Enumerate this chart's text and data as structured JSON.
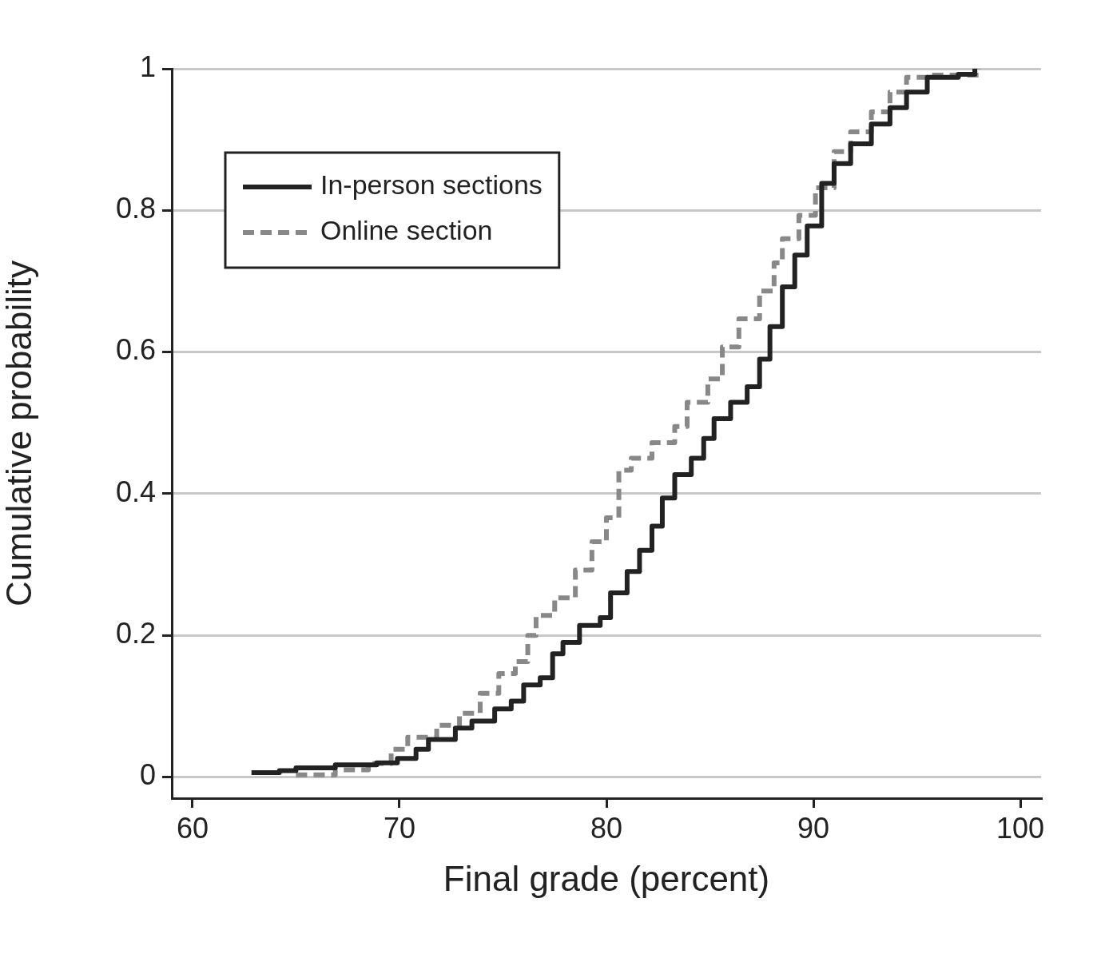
{
  "chart_data": {
    "type": "step",
    "xlabel": "Final grade (percent)",
    "ylabel": "Cumulative probability",
    "xlim": [
      59,
      101
    ],
    "ylim": [
      -0.03,
      1
    ],
    "xticks": [
      60,
      70,
      80,
      90,
      100
    ],
    "yticks": [
      0,
      0.2,
      0.4,
      0.6,
      0.8,
      1
    ],
    "grid": "y",
    "legend": "top left",
    "series": [
      {
        "name": "In-person sections",
        "color": "#222222",
        "line_style": "solid",
        "x": [
          62.85,
          64.2,
          65.0,
          66.9,
          68.9,
          69.9,
          70.8,
          71.4,
          72.7,
          73.5,
          74.6,
          75.4,
          76.0,
          76.8,
          77.4,
          77.9,
          78.7,
          79.7,
          80.2,
          81.0,
          81.6,
          82.2,
          82.7,
          83.3,
          84.1,
          84.7,
          85.2,
          86.0,
          86.8,
          87.4,
          87.9,
          88.5,
          89.1,
          89.7,
          90.4,
          91.0,
          91.8,
          92.8,
          93.7,
          94.5,
          95.5,
          97.0,
          97.8
        ],
        "values": [
          0.006,
          0.009,
          0.013,
          0.017,
          0.02,
          0.026,
          0.039,
          0.053,
          0.069,
          0.079,
          0.096,
          0.107,
          0.13,
          0.14,
          0.174,
          0.19,
          0.214,
          0.225,
          0.26,
          0.29,
          0.32,
          0.354,
          0.394,
          0.427,
          0.45,
          0.478,
          0.506,
          0.529,
          0.551,
          0.59,
          0.636,
          0.692,
          0.737,
          0.778,
          0.838,
          0.866,
          0.894,
          0.922,
          0.945,
          0.967,
          0.988,
          0.992,
          1.0
        ]
      },
      {
        "name": "Online section",
        "color": "#888888",
        "line_style": "dashed",
        "x": [
          65.0,
          66.9,
          68.5,
          69.6,
          70.4,
          71.8,
          72.9,
          73.9,
          74.8,
          75.6,
          76.2,
          76.6,
          77.5,
          78.5,
          79.3,
          80.0,
          80.6,
          81.2,
          82.2,
          83.3,
          83.9,
          84.9,
          85.6,
          86.4,
          87.4,
          88.1,
          88.5,
          89.3,
          90.1,
          91.0,
          91.8,
          92.8,
          93.7,
          94.5,
          95.7,
          98.0
        ],
        "values": [
          0.003,
          0.01,
          0.019,
          0.039,
          0.056,
          0.073,
          0.09,
          0.118,
          0.146,
          0.163,
          0.2,
          0.228,
          0.253,
          0.292,
          0.332,
          0.366,
          0.433,
          0.45,
          0.472,
          0.495,
          0.529,
          0.562,
          0.607,
          0.647,
          0.686,
          0.726,
          0.76,
          0.793,
          0.832,
          0.883,
          0.911,
          0.939,
          0.967,
          0.988,
          0.991,
          1.0
        ]
      }
    ]
  }
}
